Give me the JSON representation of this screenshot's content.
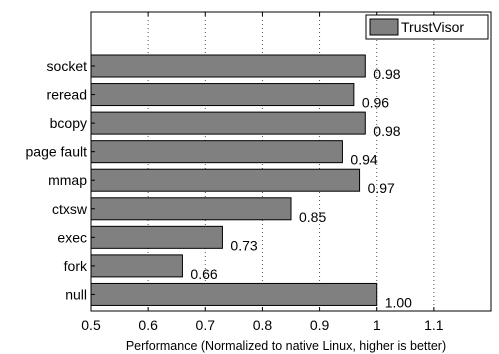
{
  "chart_data": {
    "type": "bar",
    "orientation": "horizontal",
    "categories": [
      "socket",
      "reread",
      "bcopy",
      "page fault",
      "mmap",
      "ctxsw",
      "exec",
      "fork",
      "null"
    ],
    "series": [
      {
        "name": "TrustVisor",
        "values": [
          0.98,
          0.96,
          0.98,
          0.94,
          0.97,
          0.85,
          0.73,
          0.66,
          1.0
        ],
        "value_labels": [
          "0.98",
          "0.96",
          "0.98",
          "0.94",
          "0.97",
          "0.85",
          "0.73",
          "0.66",
          "1.00"
        ],
        "color": "#808080"
      }
    ],
    "xlabel": "Performance (Normalized to native Linux, higher is better)",
    "ylabel": "",
    "title": "",
    "xlim": [
      0.5,
      1.2
    ],
    "xticks": [
      0.5,
      0.6,
      0.7,
      0.8,
      0.9,
      1.0,
      1.1
    ],
    "xtick_labels": [
      "0.5",
      "0.6",
      "0.7",
      "0.8",
      "0.9",
      "1",
      "1.1"
    ],
    "grid": "vertical dotted",
    "legend_position": "top-right"
  }
}
